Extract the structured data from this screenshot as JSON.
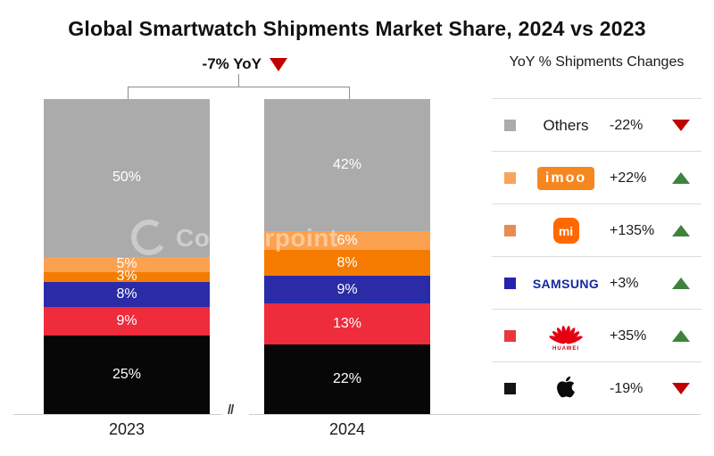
{
  "title": "Global Smartwatch Shipments Market Share, 2024 vs 2023",
  "yoy_annotation": {
    "label": "-7% YoY",
    "direction": "down"
  },
  "legend_header": "YoY % Shipments Changes",
  "watermark": "Counterpoint",
  "axis_break_label": "//",
  "chart_data": {
    "type": "bar",
    "stacked": true,
    "orientation": "vertical",
    "categories": [
      "2023",
      "2024"
    ],
    "value_suffix": "%",
    "ylim": [
      0,
      100
    ],
    "grid": false,
    "legend_position": "right",
    "total_yoy_change": "-7% YoY",
    "series": [
      {
        "name": "Others",
        "logo": "others-label",
        "values": [
          50,
          42
        ],
        "bar_color": "#ABABAB",
        "swatch_color": "#ABABAB",
        "yoy_change": "-22%",
        "trend": "down"
      },
      {
        "name": "imoo",
        "logo": "imoo-logo",
        "values": [
          5,
          6
        ],
        "bar_color": "#FCA14F",
        "swatch_color": "#F8A45C",
        "yoy_change": "+22%",
        "trend": "up"
      },
      {
        "name": "Xiaomi",
        "logo": "mi-logo",
        "values": [
          3,
          8
        ],
        "bar_color": "#F57C00",
        "swatch_color": "#EA8C52",
        "yoy_change": "+135%",
        "trend": "up"
      },
      {
        "name": "Samsung",
        "logo": "samsung-logo",
        "values": [
          8,
          9
        ],
        "bar_color": "#2B2BA8",
        "swatch_color": "#2323AE",
        "yoy_change": "+3%",
        "trend": "up"
      },
      {
        "name": "Huawei",
        "logo": "huawei-logo",
        "values": [
          9,
          13
        ],
        "bar_color": "#EE2C3C",
        "swatch_color": "#E8383E",
        "yoy_change": "+35%",
        "trend": "up"
      },
      {
        "name": "Apple",
        "logo": "apple-logo",
        "values": [
          25,
          22
        ],
        "bar_color": "#070707",
        "swatch_color": "#141414",
        "yoy_change": "-19%",
        "trend": "down"
      }
    ],
    "logo_texts": {
      "others": "Others",
      "imoo": "imoo",
      "mi": "mi",
      "samsung": "SAMSUNG",
      "huawei": "HUAWEI"
    },
    "trend_colors": {
      "up": "#3E833C",
      "down": "#C00000"
    }
  }
}
